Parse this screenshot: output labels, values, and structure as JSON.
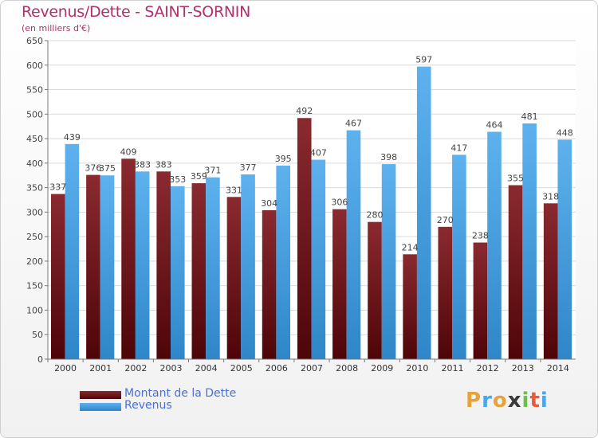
{
  "title": "Revenus/Dette - SAINT-SORNIN",
  "subtitle": "(en milliers d'€)",
  "chart_data": {
    "type": "bar",
    "categories": [
      "2000",
      "2001",
      "2002",
      "2003",
      "2004",
      "2005",
      "2006",
      "2007",
      "2008",
      "2009",
      "2010",
      "2011",
      "2012",
      "2013",
      "2014"
    ],
    "series": [
      {
        "name": "Montant de la Dette",
        "values": [
          337,
          376,
          409,
          383,
          359,
          331,
          304,
          492,
          306,
          280,
          214,
          270,
          238,
          355,
          318
        ],
        "color": "#7a0f14"
      },
      {
        "name": "Revenus",
        "values": [
          439,
          375,
          383,
          353,
          371,
          377,
          395,
          407,
          467,
          398,
          597,
          417,
          464,
          481,
          448
        ],
        "color": "#4aa6e6"
      }
    ],
    "ylim": [
      0,
      650
    ],
    "yticks": [
      0,
      50,
      100,
      150,
      200,
      250,
      300,
      350,
      400,
      450,
      500,
      550,
      600,
      650
    ],
    "grid": true,
    "legend_position": "bottom-left"
  },
  "legend": {
    "debt_label": "Montant de la Dette",
    "revenue_label": "Revenus"
  },
  "logo": {
    "letters": [
      "P",
      "r",
      "o",
      "x",
      "i",
      "t",
      "i"
    ],
    "colors": [
      "#e8a23a",
      "#4aa6e6",
      "#e8a23a",
      "#3a3a3a",
      "#6ac04a",
      "#e85a3a",
      "#4aa6e6"
    ]
  }
}
